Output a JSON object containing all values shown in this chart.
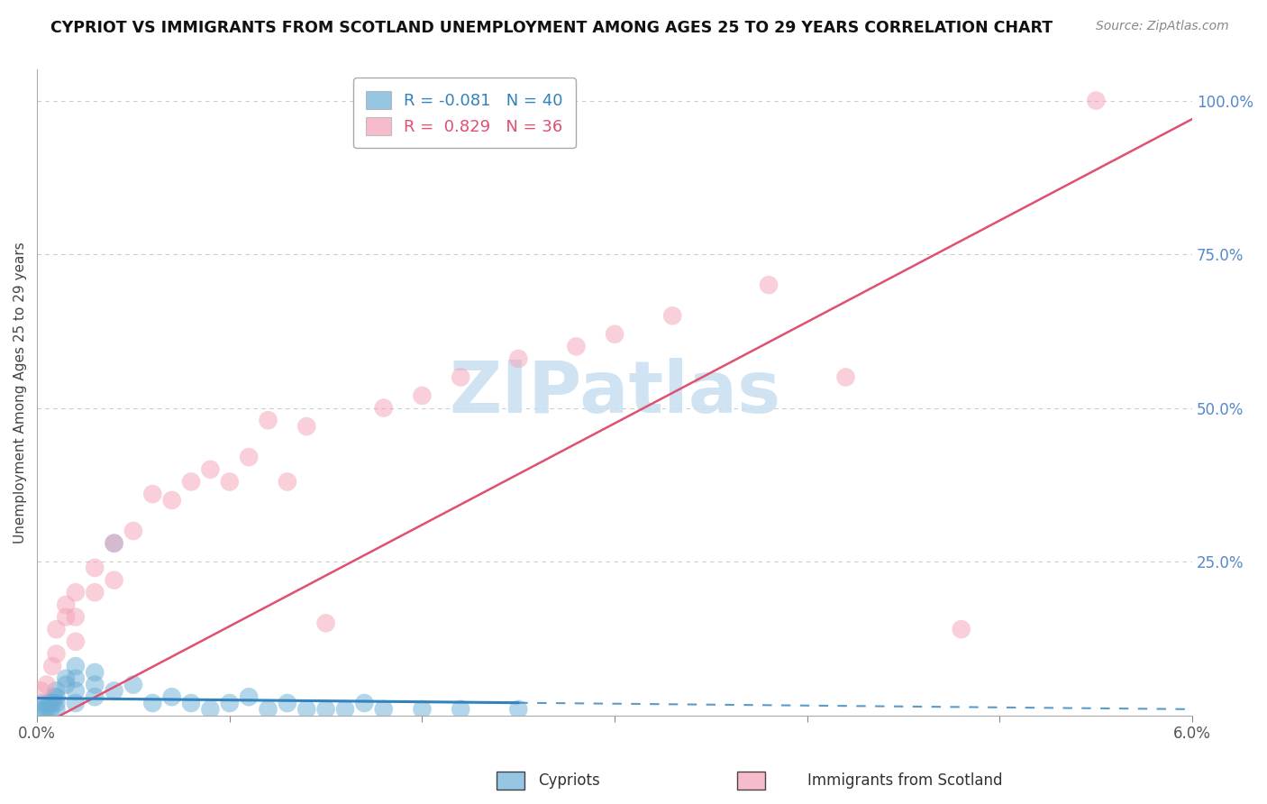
{
  "title": "CYPRIOT VS IMMIGRANTS FROM SCOTLAND UNEMPLOYMENT AMONG AGES 25 TO 29 YEARS CORRELATION CHART",
  "source": "Source: ZipAtlas.com",
  "ylabel": "Unemployment Among Ages 25 to 29 years",
  "legend_label1": "Cypriots",
  "legend_label2": "Immigrants from Scotland",
  "r1": -0.081,
  "n1": 40,
  "r2": 0.829,
  "n2": 36,
  "color_blue": "#6baed6",
  "color_pink": "#f4a0b5",
  "color_line_blue": "#3182bd",
  "color_line_pink": "#e05070",
  "watermark_color": "#c8dff0",
  "xmin": 0.0,
  "xmax": 0.06,
  "ymin": 0.0,
  "ymax": 1.05,
  "ytick_pos": [
    0.0,
    0.25,
    0.5,
    0.75,
    1.0
  ],
  "ytick_labels": [
    "",
    "25.0%",
    "50.0%",
    "75.0%",
    "100.0%"
  ],
  "blue_x": [
    0.0002,
    0.0003,
    0.0004,
    0.0005,
    0.0006,
    0.0007,
    0.0008,
    0.0009,
    0.001,
    0.001,
    0.001,
    0.001,
    0.0015,
    0.0015,
    0.002,
    0.002,
    0.002,
    0.002,
    0.003,
    0.003,
    0.003,
    0.004,
    0.004,
    0.005,
    0.006,
    0.007,
    0.008,
    0.009,
    0.01,
    0.011,
    0.012,
    0.013,
    0.014,
    0.015,
    0.016,
    0.017,
    0.018,
    0.02,
    0.022,
    0.025
  ],
  "blue_y": [
    0.01,
    0.02,
    0.01,
    0.01,
    0.02,
    0.01,
    0.02,
    0.03,
    0.01,
    0.02,
    0.03,
    0.04,
    0.05,
    0.06,
    0.02,
    0.04,
    0.06,
    0.08,
    0.03,
    0.05,
    0.07,
    0.28,
    0.04,
    0.05,
    0.02,
    0.03,
    0.02,
    0.01,
    0.02,
    0.03,
    0.01,
    0.02,
    0.01,
    0.01,
    0.01,
    0.02,
    0.01,
    0.01,
    0.01,
    0.01
  ],
  "pink_x": [
    0.0002,
    0.0005,
    0.0008,
    0.001,
    0.001,
    0.0015,
    0.0015,
    0.002,
    0.002,
    0.002,
    0.003,
    0.003,
    0.004,
    0.004,
    0.005,
    0.006,
    0.007,
    0.008,
    0.009,
    0.01,
    0.011,
    0.012,
    0.013,
    0.014,
    0.015,
    0.018,
    0.02,
    0.022,
    0.025,
    0.028,
    0.03,
    0.033,
    0.038,
    0.042,
    0.048,
    0.055
  ],
  "pink_y": [
    0.04,
    0.05,
    0.08,
    0.1,
    0.14,
    0.16,
    0.18,
    0.12,
    0.16,
    0.2,
    0.2,
    0.24,
    0.22,
    0.28,
    0.3,
    0.36,
    0.35,
    0.38,
    0.4,
    0.38,
    0.42,
    0.48,
    0.38,
    0.47,
    0.15,
    0.5,
    0.52,
    0.55,
    0.58,
    0.6,
    0.62,
    0.65,
    0.7,
    0.55,
    0.14,
    1.0
  ]
}
